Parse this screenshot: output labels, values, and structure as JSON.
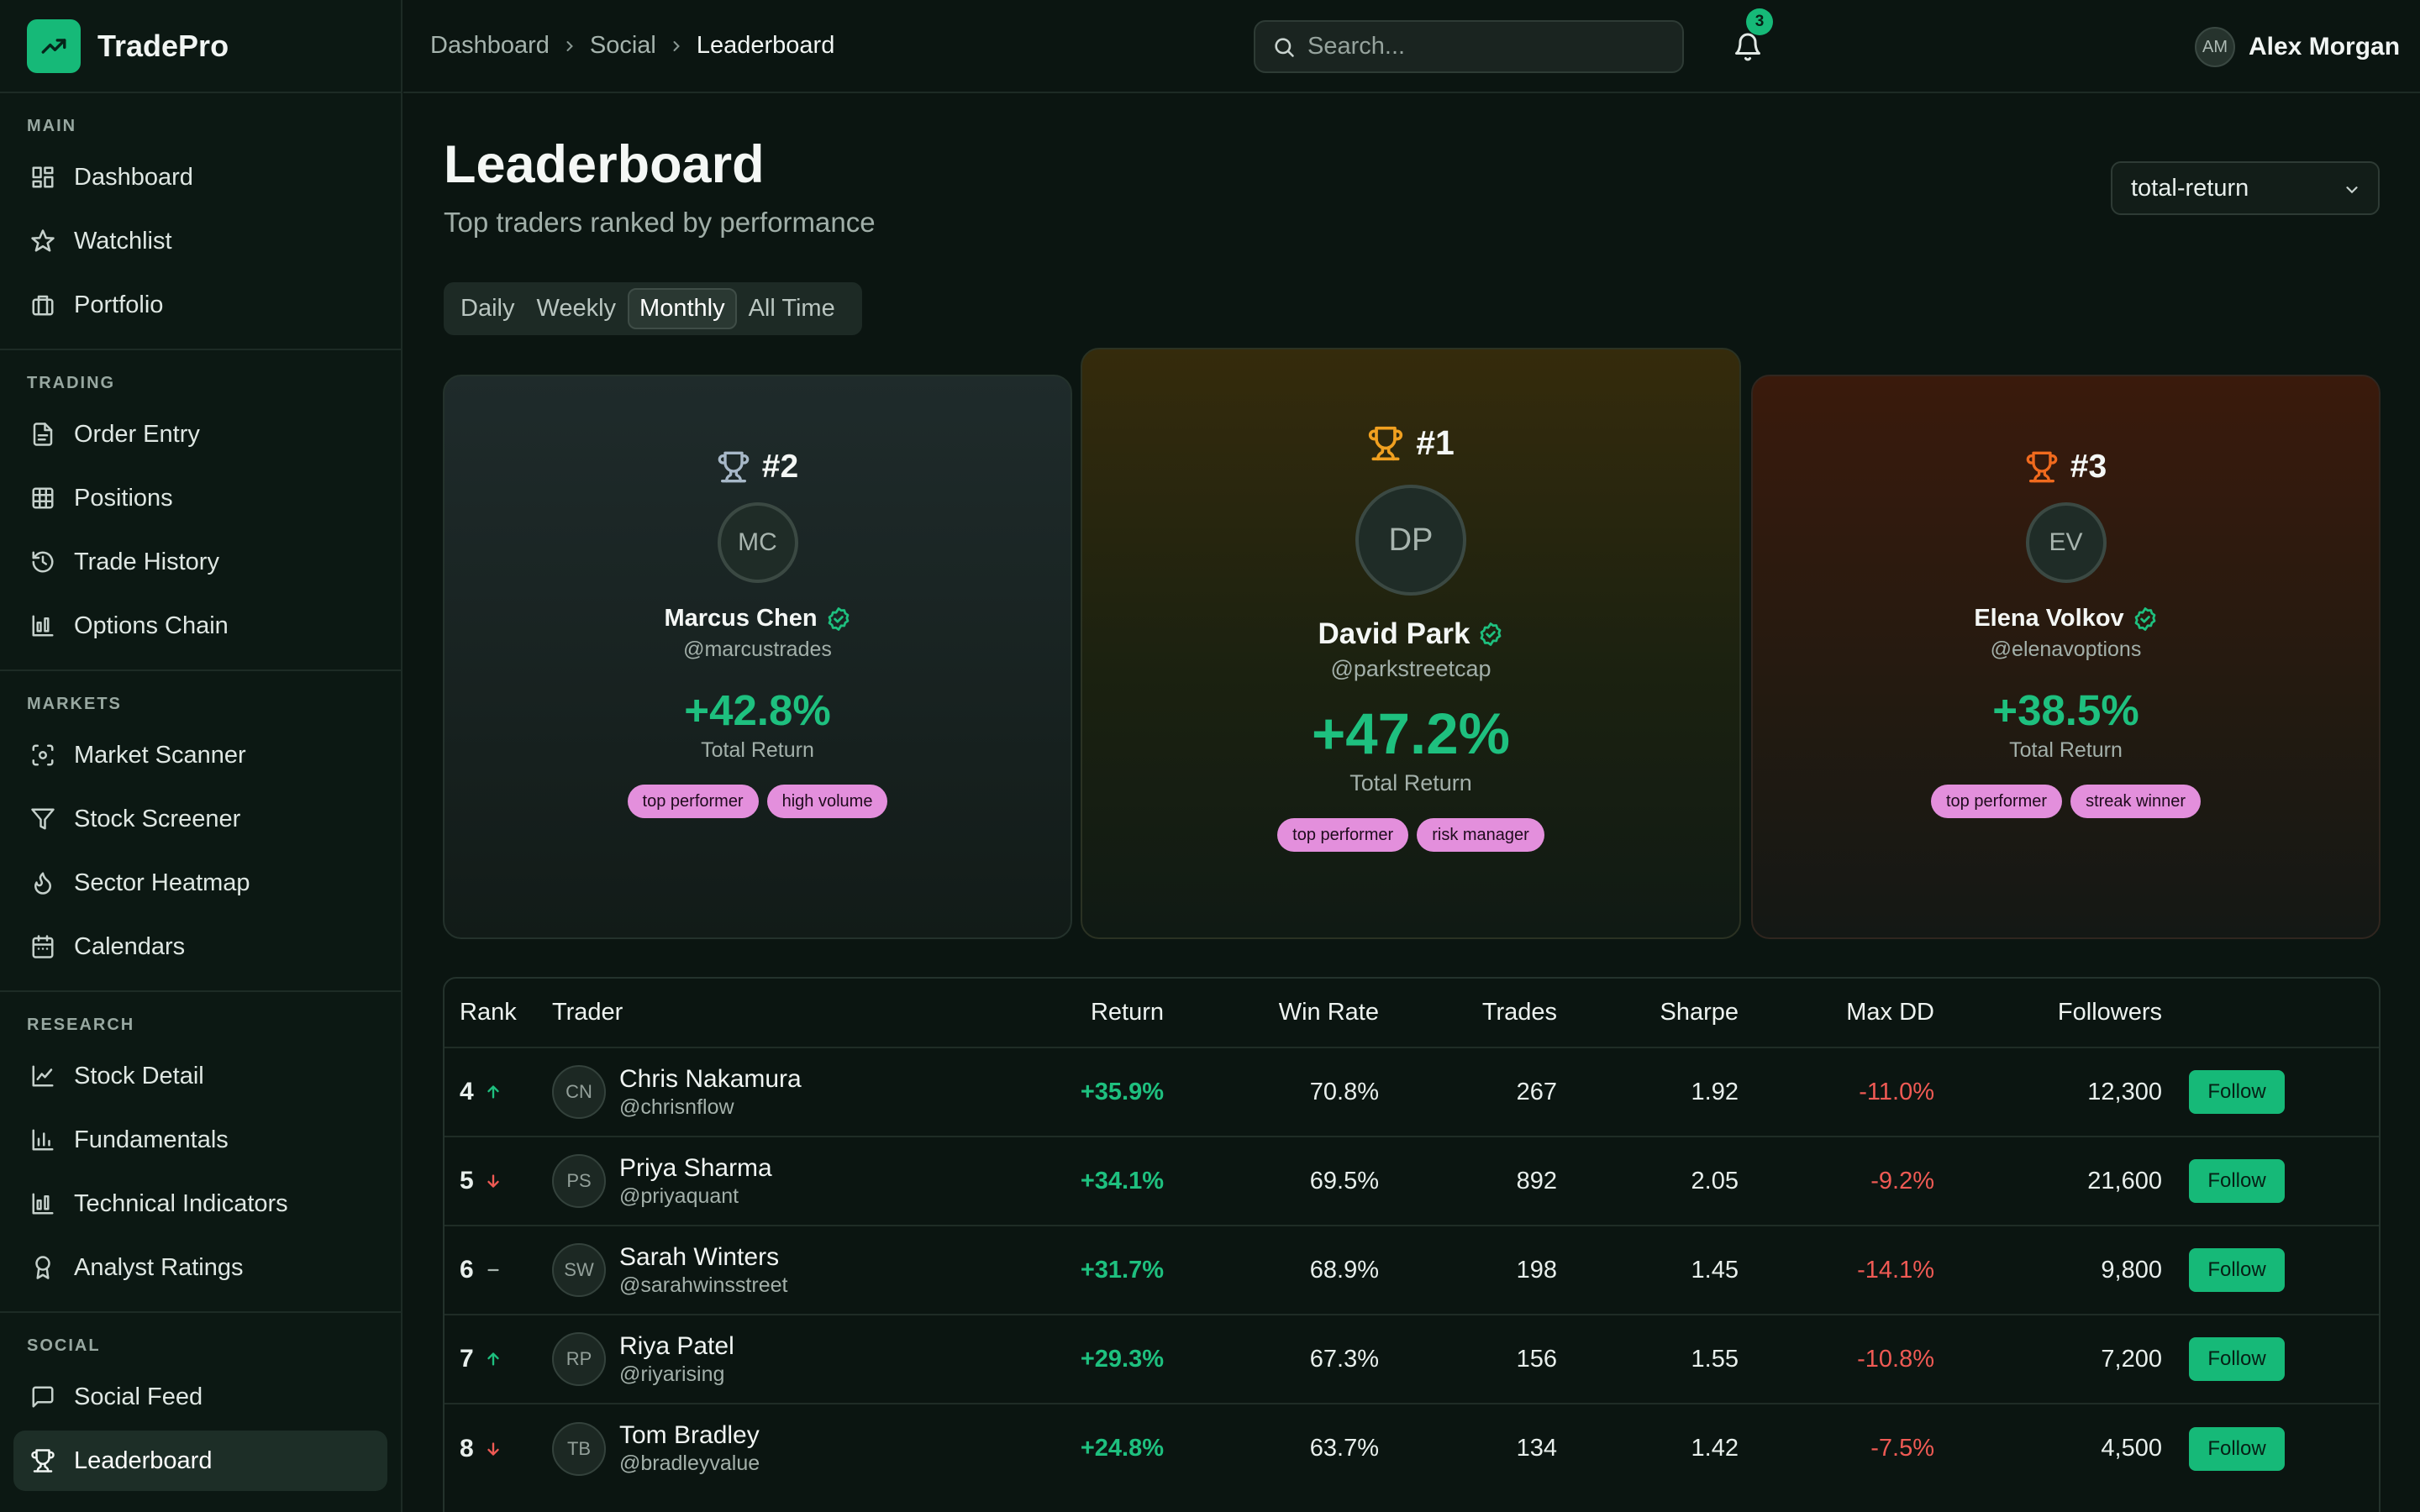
{
  "brand": {
    "name": "TradePro",
    "icon": "trending-up-icon"
  },
  "sidebar": {
    "sections": [
      {
        "label": "MAIN",
        "items": [
          {
            "label": "Dashboard",
            "icon": "grid-icon"
          },
          {
            "label": "Watchlist",
            "icon": "star-icon"
          },
          {
            "label": "Portfolio",
            "icon": "briefcase-icon"
          }
        ]
      },
      {
        "label": "TRADING",
        "items": [
          {
            "label": "Order Entry",
            "icon": "file-icon"
          },
          {
            "label": "Positions",
            "icon": "table-icon"
          },
          {
            "label": "Trade History",
            "icon": "history-icon"
          },
          {
            "label": "Options Chain",
            "icon": "chart-bars-icon"
          }
        ]
      },
      {
        "label": "MARKETS",
        "items": [
          {
            "label": "Market Scanner",
            "icon": "scan-icon"
          },
          {
            "label": "Stock Screener",
            "icon": "filter-icon"
          },
          {
            "label": "Sector Heatmap",
            "icon": "flame-icon"
          },
          {
            "label": "Calendars",
            "icon": "calendar-icon"
          }
        ]
      },
      {
        "label": "RESEARCH",
        "items": [
          {
            "label": "Stock Detail",
            "icon": "line-chart-icon"
          },
          {
            "label": "Fundamentals",
            "icon": "bar-chart-icon"
          },
          {
            "label": "Technical Indicators",
            "icon": "chart-bars-icon"
          },
          {
            "label": "Analyst Ratings",
            "icon": "award-icon"
          }
        ]
      },
      {
        "label": "SOCIAL",
        "items": [
          {
            "label": "Social Feed",
            "icon": "message-icon"
          },
          {
            "label": "Leaderboard",
            "icon": "trophy-icon",
            "active": true
          }
        ]
      }
    ]
  },
  "header": {
    "breadcrumbs": [
      "Dashboard",
      "Social",
      "Leaderboard"
    ],
    "search_placeholder": "Search...",
    "notification_count": "3",
    "user": {
      "initials": "AM",
      "name": "Alex Morgan"
    }
  },
  "page": {
    "title": "Leaderboard",
    "subtitle": "Top traders ranked by performance",
    "sort_value": "total-return",
    "tabs": [
      {
        "label": "Daily"
      },
      {
        "label": "Weekly"
      },
      {
        "label": "Monthly",
        "active": true
      },
      {
        "label": "All Time"
      }
    ]
  },
  "podium": {
    "first": {
      "rank": "#1",
      "initials": "DP",
      "name": "David Park",
      "handle": "@parkstreetcap",
      "return": "+47.2%",
      "return_label": "Total Return",
      "tags": [
        "top performer",
        "risk manager"
      ],
      "trophy_color": "#f0a020"
    },
    "second": {
      "rank": "#2",
      "initials": "MC",
      "name": "Marcus Chen",
      "handle": "@marcustrades",
      "return": "+42.8%",
      "return_label": "Total Return",
      "tags": [
        "top performer",
        "high volume"
      ],
      "trophy_color": "#a7b8c8"
    },
    "third": {
      "rank": "#3",
      "initials": "EV",
      "name": "Elena Volkov",
      "handle": "@elenavoptions",
      "return": "+38.5%",
      "return_label": "Total Return",
      "tags": [
        "top performer",
        "streak winner"
      ],
      "trophy_color": "#f06a1e"
    }
  },
  "table": {
    "headers": {
      "rank": "Rank",
      "trader": "Trader",
      "return": "Return",
      "win_rate": "Win Rate",
      "trades": "Trades",
      "sharpe": "Sharpe",
      "max_dd": "Max DD",
      "followers": "Followers"
    },
    "follow_label": "Follow",
    "rows": [
      {
        "rank": "4",
        "trend": "up",
        "initials": "CN",
        "name": "Chris Nakamura",
        "handle": "@chrisnflow",
        "return": "+35.9%",
        "win_rate": "70.8%",
        "trades": "267",
        "sharpe": "1.92",
        "max_dd": "-11.0%",
        "followers": "12,300"
      },
      {
        "rank": "5",
        "trend": "down",
        "initials": "PS",
        "name": "Priya Sharma",
        "handle": "@priyaquant",
        "return": "+34.1%",
        "win_rate": "69.5%",
        "trades": "892",
        "sharpe": "2.05",
        "max_dd": "-9.2%",
        "followers": "21,600"
      },
      {
        "rank": "6",
        "trend": "flat",
        "initials": "SW",
        "name": "Sarah Winters",
        "handle": "@sarahwinsstreet",
        "return": "+31.7%",
        "win_rate": "68.9%",
        "trades": "198",
        "sharpe": "1.45",
        "max_dd": "-14.1%",
        "followers": "9,800"
      },
      {
        "rank": "7",
        "trend": "up",
        "initials": "RP",
        "name": "Riya Patel",
        "handle": "@riyarising",
        "return": "+29.3%",
        "win_rate": "67.3%",
        "trades": "156",
        "sharpe": "1.55",
        "max_dd": "-10.8%",
        "followers": "7,200"
      },
      {
        "rank": "8",
        "trend": "down",
        "initials": "TB",
        "name": "Tom Bradley",
        "handle": "@bradleyvalue",
        "return": "+24.8%",
        "win_rate": "63.7%",
        "trades": "134",
        "sharpe": "1.42",
        "max_dd": "-7.5%",
        "followers": "4,500"
      }
    ]
  },
  "colors": {
    "accent": "#16b978",
    "positive": "#1ec07f",
    "negative": "#ef5a54",
    "tag": "#e38fdc"
  }
}
